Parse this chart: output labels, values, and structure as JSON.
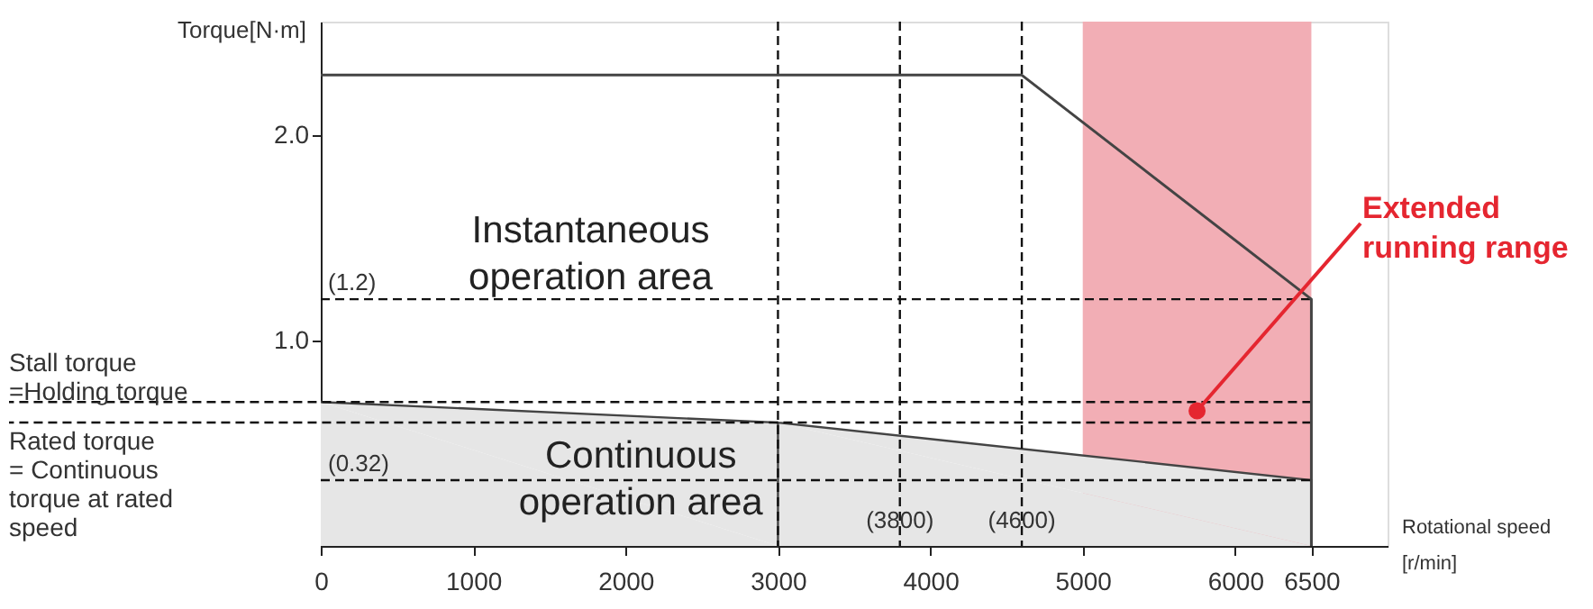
{
  "chart_data": {
    "type": "line",
    "xlabel": "Rotational speed\n[r/min]",
    "ylabel": "Torque[N·m]",
    "series": [
      {
        "color": "#444444",
        "x": [
          0,
          4600,
          6500,
          6500
        ],
        "values": [
          2.29,
          2.29,
          1.2,
          0
        ]
      },
      {
        "type": "area",
        "color": "#e6e6e6",
        "x": [
          0,
          3000,
          6500
        ],
        "values": [
          0.7,
          0.6,
          0.32
        ]
      }
    ],
    "xlim": [
      0,
      7000
    ],
    "xticks": [
      0,
      1000,
      2000,
      3000,
      4000,
      5000,
      6000,
      6500
    ],
    "ylim": [
      0,
      2.55
    ],
    "yticks": [
      {
        "value": 1,
        "label": "1.0"
      },
      {
        "value": 2,
        "label": "2.0"
      }
    ],
    "ref_lines": [
      {
        "axis": "x",
        "value": 3000,
        "line_style": "dashed"
      },
      {
        "axis": "x",
        "value": 3800,
        "label": "(3800)",
        "line_style": "dashed"
      },
      {
        "axis": "x",
        "value": 4600,
        "label": "(4600)",
        "line_style": "dashed"
      },
      {
        "axis": "y",
        "value": 1.2,
        "label": "(1.2)",
        "line_style": "dashed"
      },
      {
        "axis": "y",
        "value": 0.32,
        "label": "(0.32)",
        "line_style": "dashed"
      },
      {
        "axis": "y",
        "value": 0.7,
        "line_style": "dashed"
      },
      {
        "axis": "y",
        "value": 0.6,
        "line_style": "dashed"
      }
    ],
    "bands": [
      {
        "axis": "x",
        "from": 5000,
        "to": 6500,
        "label": "Extended\nrunning range",
        "color": "#f2aeb5"
      }
    ],
    "annotations": [
      "Instantaneous\noperation area",
      "Continuous\noperation area",
      {
        "text": "Stall torque\n=Holding torque",
        "y": 0.7
      },
      {
        "text": "Rated torque\n= Continuous\n   torque at rated\n   speed",
        "y": 0.6
      }
    ],
    "grid": false
  }
}
